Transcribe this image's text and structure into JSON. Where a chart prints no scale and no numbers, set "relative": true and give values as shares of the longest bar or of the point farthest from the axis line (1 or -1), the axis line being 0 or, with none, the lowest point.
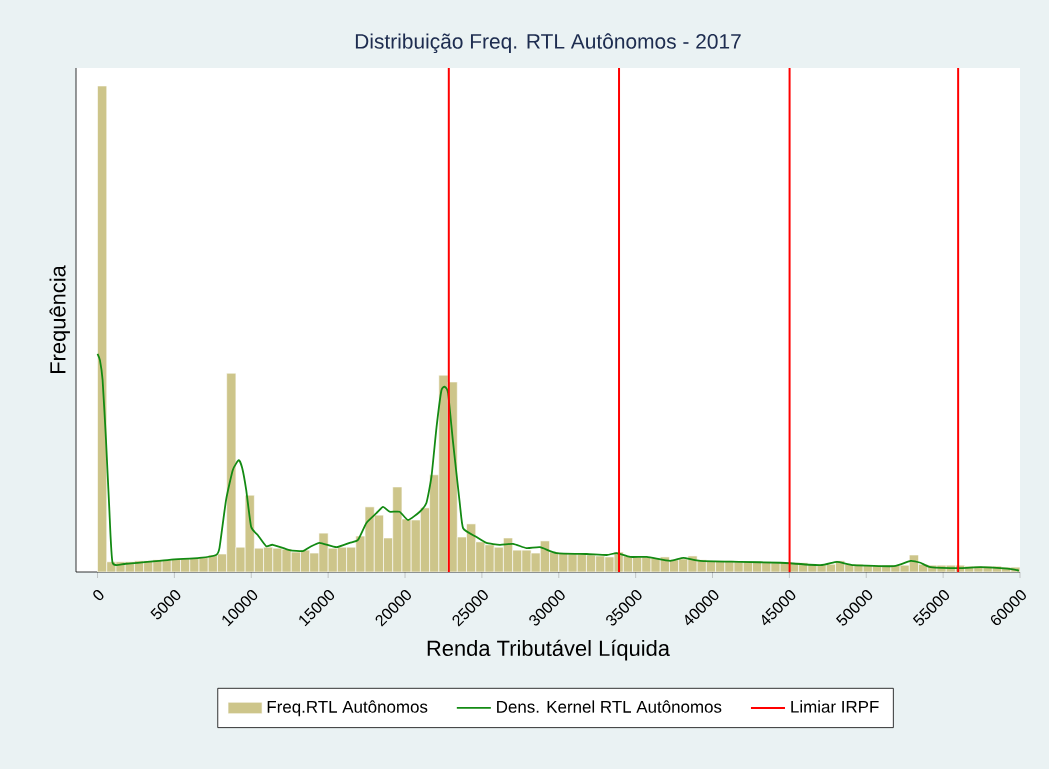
{
  "chart_data": {
    "type": "histogram",
    "title": "Distribuição Freq. RTL Autônomos - 2017",
    "xlabel": "Renda Tributável Líquida",
    "ylabel": "Frequência",
    "relative": true,
    "legend": "bottom",
    "xlim": [
      -1400,
      60000
    ],
    "xticks": [
      0,
      5000,
      10000,
      15000,
      20000,
      25000,
      30000,
      35000,
      40000,
      45000,
      50000,
      55000,
      60000
    ],
    "series": [
      {
        "name": "Freq.RTL Autônomos",
        "color": "#cdc58a",
        "bins": [
          0,
          600,
          1200,
          1800,
          2400,
          3000,
          3600,
          4200,
          4800,
          5400,
          6000,
          6600,
          7200,
          7800,
          8400,
          9000,
          9600,
          10200,
          10800,
          11400,
          12000,
          12600,
          13200,
          13800,
          14400,
          15000,
          15600,
          16200,
          16800,
          17400,
          18000,
          18600,
          19200,
          19800,
          20400,
          21000,
          21600,
          22200,
          22800,
          23400,
          24000,
          24600,
          25200,
          25800,
          26400,
          27000,
          27600,
          28200,
          28800,
          29400,
          30000,
          30600,
          31200,
          31800,
          32400,
          33000,
          33600,
          34200,
          34800,
          35400,
          36000,
          36600,
          37200,
          37800,
          38400,
          39000,
          39600,
          40200,
          40800,
          41400,
          42000,
          42600,
          43200,
          43800,
          44400,
          45000,
          45600,
          46200,
          46800,
          47400,
          48000,
          48600,
          49200,
          49800,
          50400,
          51000,
          51600,
          52200,
          52800,
          53400,
          54000,
          54600,
          55200,
          55800,
          56400,
          57000,
          57600,
          58200,
          58800,
          59400,
          60000
        ],
        "values": [
          1,
          0.021,
          0.021,
          0.021,
          0.023,
          0.023,
          0.025,
          0.025,
          0.027,
          0.027,
          0.029,
          0.031,
          0.035,
          0.037,
          0.409,
          0.051,
          0.158,
          0.049,
          0.051,
          0.049,
          0.047,
          0.041,
          0.045,
          0.039,
          0.08,
          0.049,
          0.051,
          0.051,
          0.074,
          0.134,
          0.117,
          0.07,
          0.175,
          0.109,
          0.107,
          0.132,
          0.2,
          0.405,
          0.391,
          0.072,
          0.099,
          0.062,
          0.056,
          0.051,
          0.07,
          0.045,
          0.045,
          0.039,
          0.064,
          0.041,
          0.039,
          0.037,
          0.037,
          0.035,
          0.033,
          0.031,
          0.041,
          0.033,
          0.031,
          0.031,
          0.029,
          0.031,
          0.025,
          0.027,
          0.033,
          0.025,
          0.023,
          0.023,
          0.023,
          0.021,
          0.021,
          0.021,
          0.021,
          0.019,
          0.019,
          0.019,
          0.019,
          0.016,
          0.016,
          0.016,
          0.023,
          0.016,
          0.016,
          0.014,
          0.014,
          0.014,
          0.014,
          0.014,
          0.035,
          0.016,
          0.014,
          0.014,
          0.014,
          0.014,
          0.012,
          0.012,
          0.012,
          0.012,
          0.01,
          0.01
        ]
      },
      {
        "type": "line",
        "name": "Dens. Kernel RTL Autônomos",
        "color": "#138a13",
        "x": [
          0,
          156,
          330,
          550,
          760,
          980,
          1850,
          4670,
          6630,
          7710,
          7930,
          8360,
          8800,
          9190,
          9410,
          9670,
          9990,
          10420,
          10970,
          11400,
          12490,
          13350,
          13790,
          14440,
          15530,
          16400,
          16940,
          17490,
          18140,
          18570,
          19000,
          19650,
          20200,
          20960,
          21390,
          21720,
          22050,
          22370,
          22590,
          22800,
          23130,
          23560,
          23780,
          24650,
          25300,
          26170,
          27030,
          27910,
          28780,
          29860,
          31820,
          33120,
          33770,
          34640,
          35730,
          37240,
          38110,
          39200,
          41800,
          44410,
          47020,
          48100,
          49190,
          51790,
          52880,
          53530,
          54190,
          56140,
          57440,
          59180,
          59930
        ],
        "values": [
          0.449,
          0.436,
          0.395,
          0.272,
          0.134,
          0.019,
          0.017,
          0.025,
          0.029,
          0.035,
          0.049,
          0.148,
          0.21,
          0.23,
          0.214,
          0.169,
          0.093,
          0.076,
          0.053,
          0.056,
          0.045,
          0.043,
          0.051,
          0.06,
          0.051,
          0.06,
          0.066,
          0.101,
          0.121,
          0.134,
          0.124,
          0.124,
          0.107,
          0.124,
          0.142,
          0.196,
          0.298,
          0.374,
          0.381,
          0.368,
          0.265,
          0.142,
          0.09,
          0.072,
          0.06,
          0.056,
          0.058,
          0.049,
          0.051,
          0.039,
          0.037,
          0.035,
          0.039,
          0.031,
          0.031,
          0.023,
          0.029,
          0.023,
          0.021,
          0.019,
          0.014,
          0.021,
          0.014,
          0.012,
          0.023,
          0.019,
          0.01,
          0.008,
          0.01,
          0.007,
          0.003
        ]
      }
    ],
    "ref_lines": [
      {
        "axis": "x",
        "value": 22847.76,
        "label": "Limiar IRPF",
        "color": "#ff0000"
      },
      {
        "axis": "x",
        "value": 33919.8,
        "color": "#ff0000"
      },
      {
        "axis": "x",
        "value": 45012.6,
        "color": "#ff0000"
      },
      {
        "axis": "x",
        "value": 55976.16,
        "color": "#ff0000"
      }
    ]
  }
}
